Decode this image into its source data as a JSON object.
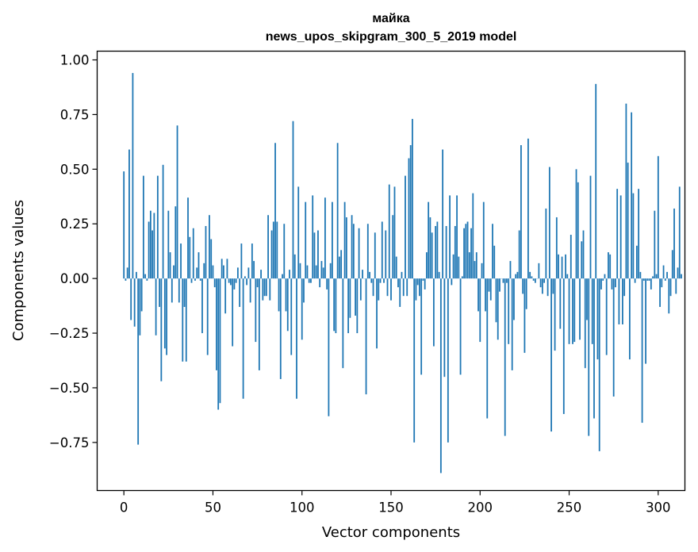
{
  "chart_data": {
    "type": "bar",
    "title_word": "майка",
    "title_model": "news_upos_skipgram_300_5_2019 model",
    "xlabel": "Vector components",
    "ylabel": "Components values",
    "xlim": [
      -15,
      315
    ],
    "ylim": [
      -0.97,
      1.04
    ],
    "xticks": [
      0,
      50,
      100,
      150,
      200,
      250,
      300
    ],
    "xtick_labels": [
      "0",
      "50",
      "100",
      "150",
      "200",
      "250",
      "300"
    ],
    "yticks": [
      -0.75,
      -0.5,
      -0.25,
      0.0,
      0.25,
      0.5,
      0.75,
      1.0
    ],
    "ytick_labels": [
      "−0.75",
      "−0.50",
      "−0.25",
      "0.00",
      "0.25",
      "0.50",
      "0.75",
      "1.00"
    ],
    "bar_color": "#1f77b4",
    "values": [
      0.49,
      -0.01,
      0.05,
      0.59,
      -0.19,
      0.94,
      -0.22,
      0.03,
      -0.76,
      -0.26,
      -0.15,
      0.47,
      0.02,
      -0.01,
      0.26,
      0.31,
      0.22,
      0.3,
      -0.26,
      0.47,
      -0.13,
      -0.47,
      0.52,
      -0.32,
      -0.35,
      0.31,
      0.12,
      -0.11,
      0.06,
      0.33,
      0.7,
      -0.11,
      0.16,
      -0.38,
      -0.13,
      -0.38,
      0.37,
      0.19,
      -0.02,
      0.23,
      -0.01,
      0.05,
      0.12,
      -0.01,
      -0.25,
      0.07,
      0.24,
      -0.35,
      0.29,
      0.18,
      0.06,
      -0.04,
      -0.42,
      -0.6,
      -0.57,
      0.09,
      0.06,
      -0.16,
      0.09,
      -0.02,
      -0.03,
      -0.31,
      -0.05,
      -0.02,
      0.05,
      -0.13,
      0.16,
      -0.55,
      0.01,
      -0.03,
      0.05,
      -0.11,
      0.16,
      0.08,
      -0.29,
      -0.04,
      -0.42,
      0.04,
      -0.1,
      -0.08,
      -0.08,
      0.29,
      -0.1,
      0.22,
      0.26,
      0.62,
      0.26,
      -0.15,
      -0.46,
      0.02,
      0.25,
      -0.15,
      -0.24,
      0.04,
      -0.35,
      0.72,
      0.11,
      -0.55,
      0.42,
      0.07,
      -0.28,
      -0.11,
      0.35,
      0.06,
      -0.02,
      -0.02,
      0.38,
      0.21,
      0.06,
      0.22,
      -0.04,
      0.08,
      0.05,
      0.37,
      -0.05,
      -0.63,
      0.07,
      0.35,
      -0.24,
      -0.25,
      0.62,
      0.1,
      0.13,
      -0.41,
      0.35,
      0.28,
      -0.25,
      -0.18,
      0.29,
      0.25,
      -0.17,
      -0.25,
      0.23,
      -0.1,
      0.04,
      0.0,
      -0.53,
      0.25,
      0.03,
      -0.02,
      -0.08,
      0.21,
      -0.32,
      -0.1,
      -0.02,
      0.26,
      -0.02,
      0.22,
      -0.08,
      0.43,
      -0.1,
      0.29,
      0.42,
      0.1,
      -0.04,
      -0.13,
      0.03,
      -0.08,
      0.47,
      -0.08,
      0.55,
      0.61,
      0.73,
      -0.75,
      -0.1,
      -0.03,
      -0.08,
      -0.44,
      -0.01,
      -0.05,
      0.12,
      0.35,
      0.28,
      0.21,
      -0.31,
      0.24,
      0.26,
      0.03,
      -0.89,
      0.59,
      -0.45,
      0.24,
      -0.75,
      0.38,
      -0.03,
      0.11,
      0.24,
      0.38,
      0.1,
      -0.44,
      0.01,
      0.23,
      0.25,
      0.26,
      0.12,
      0.23,
      0.39,
      0.08,
      0.12,
      -0.15,
      -0.29,
      0.07,
      0.35,
      -0.15,
      -0.64,
      -0.06,
      -0.1,
      0.25,
      0.15,
      -0.2,
      -0.28,
      -0.06,
      0.0,
      -0.02,
      -0.72,
      -0.02,
      -0.3,
      0.08,
      -0.42,
      -0.19,
      0.02,
      0.03,
      0.22,
      0.61,
      -0.07,
      -0.34,
      -0.14,
      0.64,
      0.03,
      0.01,
      -0.01,
      -0.02,
      0.0,
      0.07,
      -0.04,
      -0.07,
      -0.02,
      0.32,
      -0.08,
      0.51,
      -0.7,
      -0.07,
      -0.33,
      0.28,
      0.11,
      -0.23,
      0.1,
      -0.62,
      0.11,
      0.02,
      -0.3,
      0.2,
      -0.3,
      -0.29,
      0.5,
      0.44,
      -0.28,
      0.17,
      0.22,
      -0.41,
      -0.19,
      -0.72,
      0.47,
      -0.3,
      -0.64,
      0.89,
      -0.37,
      -0.79,
      -0.05,
      -0.01,
      0.02,
      -0.35,
      0.12,
      0.11,
      -0.05,
      -0.54,
      -0.04,
      0.41,
      -0.21,
      0.38,
      -0.21,
      -0.08,
      0.8,
      0.53,
      -0.37,
      0.76,
      0.39,
      -0.02,
      0.15,
      0.41,
      0.03,
      -0.66,
      -0.01,
      -0.39,
      -0.01,
      -0.01,
      -0.05,
      0.01,
      0.31,
      0.02,
      0.56,
      -0.13,
      -0.04,
      0.06,
      -0.01,
      0.03,
      -0.16,
      -0.08,
      0.13,
      0.32,
      -0.07,
      0.05,
      0.42,
      0.02
    ]
  }
}
